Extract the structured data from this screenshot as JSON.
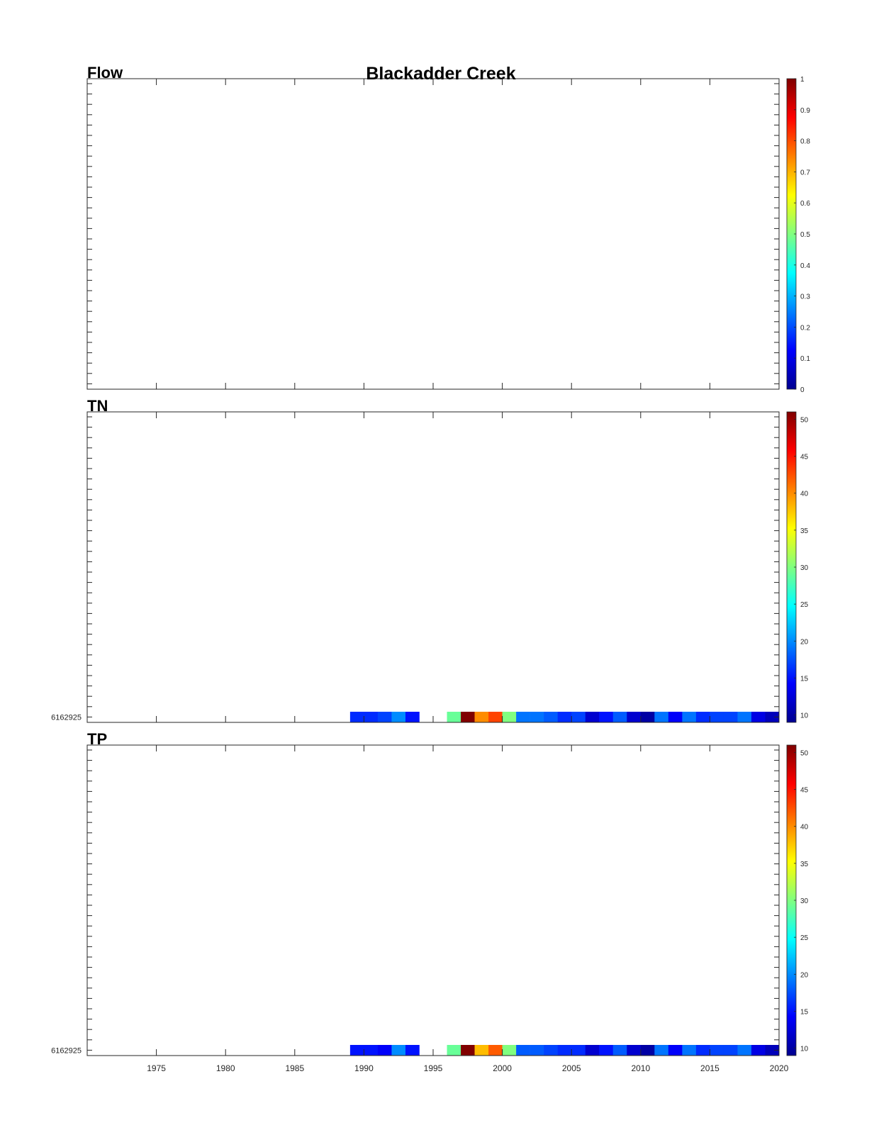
{
  "title": "Blackadder Creek",
  "colors": {
    "axis": "#262626",
    "colormap": [
      "#00008f",
      "#0000ff",
      "#0080ff",
      "#00ffff",
      "#80ff80",
      "#ffff00",
      "#ff8000",
      "#ff0000",
      "#800000"
    ]
  },
  "chart_data": [
    {
      "type": "heatmap",
      "panel_label": "Flow",
      "xlim": [
        1970,
        2020
      ],
      "x_ticks": [
        "1975",
        "1980",
        "1985",
        "1990",
        "1995",
        "2000",
        "2005",
        "2010",
        "2015",
        "2020"
      ],
      "y_ticks": [],
      "x_tick_labels_shown": false,
      "colorbar": {
        "min": 0,
        "max": 1,
        "ticks": [
          "0",
          "0.1",
          "0.2",
          "0.3",
          "0.4",
          "0.5",
          "0.6",
          "0.7",
          "0.8",
          "0.9",
          "1"
        ]
      },
      "rows": []
    },
    {
      "type": "heatmap",
      "panel_label": "TN",
      "xlim": [
        1970,
        2020
      ],
      "x_ticks": [
        "1975",
        "1980",
        "1985",
        "1990",
        "1995",
        "2000",
        "2005",
        "2010",
        "2015",
        "2020"
      ],
      "y_ticks": [
        "6162925"
      ],
      "x_tick_labels_shown": false,
      "colorbar": {
        "min": 9,
        "max": 51,
        "ticks": [
          "10",
          "15",
          "20",
          "25",
          "30",
          "35",
          "40",
          "45",
          "50"
        ]
      },
      "rows": [
        {
          "site": "6162925",
          "years": [
            1989,
            1990,
            1991,
            1992,
            1993,
            1996,
            1997,
            1998,
            1999,
            2000,
            2001,
            2002,
            2003,
            2004,
            2005,
            2006,
            2007,
            2008,
            2009,
            2010,
            2011,
            2012,
            2013,
            2014,
            2015,
            2016,
            2017,
            2018,
            2019
          ],
          "values": [
            16,
            16,
            17,
            20,
            15,
            29,
            51,
            40,
            43,
            30,
            19,
            19,
            18,
            16,
            17,
            12,
            15,
            18,
            12,
            10,
            19,
            14,
            19,
            16,
            17,
            17,
            19,
            13,
            11
          ]
        }
      ]
    },
    {
      "type": "heatmap",
      "panel_label": "TP",
      "xlim": [
        1970,
        2020
      ],
      "x_ticks": [
        "1975",
        "1980",
        "1985",
        "1990",
        "1995",
        "2000",
        "2005",
        "2010",
        "2015",
        "2020"
      ],
      "y_ticks": [
        "6162925"
      ],
      "x_tick_labels_shown": true,
      "colorbar": {
        "min": 9,
        "max": 51,
        "ticks": [
          "10",
          "15",
          "20",
          "25",
          "30",
          "35",
          "40",
          "45",
          "50"
        ]
      },
      "rows": [
        {
          "site": "6162925",
          "years": [
            1989,
            1990,
            1991,
            1992,
            1993,
            1996,
            1997,
            1998,
            1999,
            2000,
            2001,
            2002,
            2003,
            2004,
            2005,
            2006,
            2007,
            2008,
            2009,
            2010,
            2011,
            2012,
            2013,
            2014,
            2015,
            2016,
            2017,
            2018,
            2019
          ],
          "values": [
            15,
            15,
            14,
            20,
            15,
            29,
            51,
            38,
            42,
            30,
            18,
            18,
            17,
            16,
            16,
            12,
            15,
            18,
            12,
            10,
            19,
            14,
            19,
            16,
            17,
            17,
            19,
            13,
            11
          ]
        }
      ]
    }
  ]
}
